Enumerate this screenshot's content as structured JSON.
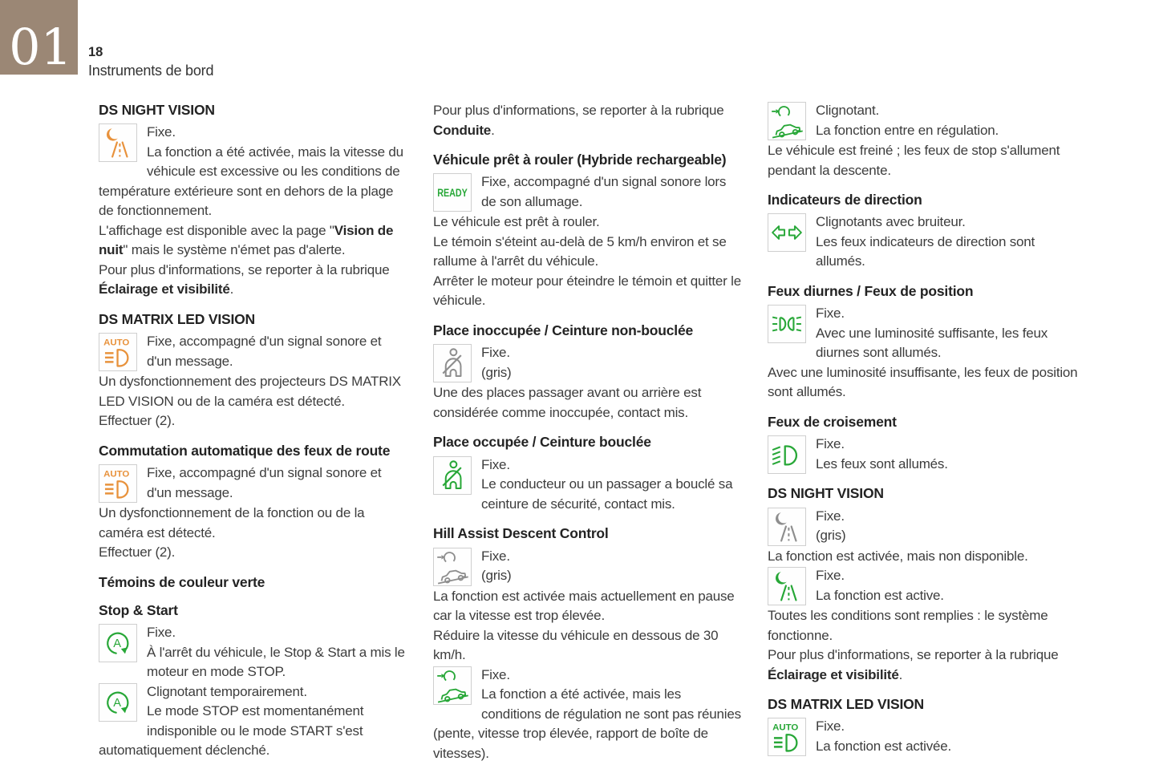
{
  "header": {
    "chapter": "01",
    "page_number": "18",
    "section_title": "Instruments de bord"
  },
  "colors": {
    "orange": "#E8923C",
    "green": "#27A737",
    "gray": "#8E8E8E",
    "chapter_box": "#9B8775",
    "icon_border": "#CFCFCF"
  },
  "columns": [
    {
      "sections": [
        {
          "heading": "DS NIGHT VISION",
          "blocks": [
            {
              "type": "icon",
              "icon": "night-vision",
              "color": "orange",
              "name": "night-vision-icon",
              "lines": [
                [
                  {
                    "t": "Fixe."
                  }
                ],
                [
                  {
                    "t": "La fonction a été activée, mais la vitesse du véhicule est excessive ou les conditions de température extérieure sont en dehors de la plage de fonctionnement."
                  }
                ]
              ]
            },
            {
              "type": "para",
              "runs": [
                {
                  "t": "L'affichage est disponible avec la page \""
                },
                {
                  "t": "Vision de nuit",
                  "b": true
                },
                {
                  "t": "\" mais le système n'émet pas d'alerte."
                }
              ]
            },
            {
              "type": "para",
              "runs": [
                {
                  "t": "Pour plus d'informations, se reporter à la rubrique "
                },
                {
                  "t": "Éclairage et visibilité",
                  "b": true
                },
                {
                  "t": "."
                }
              ]
            }
          ]
        },
        {
          "heading": "DS MATRIX LED VISION",
          "blocks": [
            {
              "type": "icon",
              "icon": "matrix",
              "color": "orange",
              "name": "auto-headlight-icon",
              "lines": [
                [
                  {
                    "t": "Fixe, accompagné d'un signal sonore et d'un message."
                  }
                ]
              ]
            },
            {
              "type": "para",
              "runs": [
                {
                  "t": "Un dysfonctionnement des projecteurs DS MATRIX LED VISION ou de la caméra est détecté."
                }
              ]
            },
            {
              "type": "para",
              "runs": [
                {
                  "t": "Effectuer (2)."
                }
              ]
            }
          ]
        },
        {
          "heading": "Commutation automatique des feux de route",
          "blocks": [
            {
              "type": "icon",
              "icon": "matrix",
              "color": "orange",
              "name": "auto-headlight-icon",
              "lines": [
                [
                  {
                    "t": "Fixe, accompagné d'un signal sonore et d'un message."
                  }
                ]
              ]
            },
            {
              "type": "para",
              "runs": [
                {
                  "t": "Un dysfonctionnement de la fonction ou de la caméra est détecté."
                }
              ]
            },
            {
              "type": "para",
              "runs": [
                {
                  "t": "Effectuer (2)."
                }
              ]
            }
          ]
        },
        {
          "heading": "Témoins de couleur verte",
          "blocks": []
        },
        {
          "heading": "Stop & Start",
          "blocks": [
            {
              "type": "icon",
              "icon": "stopstart",
              "color": "green",
              "name": "stop-start-icon",
              "lines": [
                [
                  {
                    "t": "Fixe."
                  }
                ],
                [
                  {
                    "t": "À l'arrêt du véhicule, le Stop & Start a mis le moteur en mode STOP."
                  }
                ]
              ]
            },
            {
              "type": "icon",
              "icon": "stopstart",
              "color": "green",
              "name": "stop-start-icon",
              "lines": [
                [
                  {
                    "t": "Clignotant temporairement."
                  }
                ],
                [
                  {
                    "t": "Le mode STOP est momentanément indisponible ou le mode START s'est automatiquement déclenché."
                  }
                ]
              ]
            }
          ]
        }
      ]
    },
    {
      "sections": [
        {
          "heading": "",
          "blocks": [
            {
              "type": "para",
              "runs": [
                {
                  "t": "Pour plus d'informations, se reporter à la rubrique "
                },
                {
                  "t": "Conduite",
                  "b": true
                },
                {
                  "t": "."
                }
              ]
            }
          ]
        },
        {
          "heading": "Véhicule prêt à rouler (Hybride rechargeable)",
          "blocks": [
            {
              "type": "icon",
              "icon": "ready",
              "color": "green",
              "name": "ready-icon",
              "lines": [
                [
                  {
                    "t": "Fixe, accompagné d'un signal sonore lors de son allumage."
                  }
                ]
              ]
            },
            {
              "type": "para",
              "runs": [
                {
                  "t": "Le véhicule est prêt à rouler."
                }
              ]
            },
            {
              "type": "para",
              "runs": [
                {
                  "t": "Le témoin s'éteint au-delà de 5 km/h environ et se rallume à l'arrêt du véhicule."
                }
              ]
            },
            {
              "type": "para",
              "runs": [
                {
                  "t": "Arrêter le moteur pour éteindre le témoin et quitter le véhicule."
                }
              ]
            }
          ]
        },
        {
          "heading": "Place inoccupée / Ceinture non-bouclée",
          "blocks": [
            {
              "type": "icon",
              "icon": "seatbelt",
              "color": "gray",
              "name": "seatbelt-icon",
              "lines": [
                [
                  {
                    "t": "Fixe."
                  }
                ],
                [
                  {
                    "t": "(gris)"
                  }
                ]
              ]
            },
            {
              "type": "para",
              "runs": [
                {
                  "t": "Une des places passager avant ou arrière est considérée comme inoccupée, contact mis."
                }
              ]
            }
          ]
        },
        {
          "heading": "Place occupée / Ceinture bouclée",
          "blocks": [
            {
              "type": "icon",
              "icon": "seatbelt",
              "color": "green",
              "name": "seatbelt-icon",
              "lines": [
                [
                  {
                    "t": "Fixe."
                  }
                ],
                [
                  {
                    "t": "Le conducteur ou un passager a bouclé sa ceinture de sécurité, contact mis."
                  }
                ]
              ]
            }
          ]
        },
        {
          "heading": "Hill Assist Descent Control",
          "blocks": [
            {
              "type": "icon",
              "icon": "hill",
              "color": "gray",
              "name": "hill-descent-icon",
              "lines": [
                [
                  {
                    "t": "Fixe."
                  }
                ],
                [
                  {
                    "t": "(gris)"
                  }
                ]
              ]
            },
            {
              "type": "para",
              "runs": [
                {
                  "t": "La fonction est activée mais actuellement en pause car la vitesse est trop élevée."
                }
              ]
            },
            {
              "type": "para",
              "runs": [
                {
                  "t": "Réduire la vitesse du véhicule en dessous de 30 km/h."
                }
              ]
            },
            {
              "type": "icon",
              "icon": "hill",
              "color": "green",
              "name": "hill-descent-icon",
              "lines": [
                [
                  {
                    "t": "Fixe."
                  }
                ],
                [
                  {
                    "t": "La fonction a été activée, mais les conditions de régulation ne sont pas réunies (pente, vitesse trop élevée, rapport de boîte de vitesses)."
                  }
                ]
              ]
            }
          ]
        }
      ]
    },
    {
      "sections": [
        {
          "heading": "",
          "blocks": [
            {
              "type": "icon",
              "icon": "hill",
              "color": "green",
              "name": "hill-descent-icon",
              "lines": [
                [
                  {
                    "t": "Clignotant."
                  }
                ],
                [
                  {
                    "t": "La fonction entre en régulation."
                  }
                ]
              ]
            },
            {
              "type": "para",
              "runs": [
                {
                  "t": "Le véhicule est freiné ; les feux de stop s'allument pendant la descente."
                }
              ]
            }
          ]
        },
        {
          "heading": "Indicateurs de direction",
          "blocks": [
            {
              "type": "icon",
              "icon": "arrows",
              "color": "green",
              "name": "direction-indicators-icon",
              "lines": [
                [
                  {
                    "t": "Clignotants avec bruiteur."
                  }
                ],
                [
                  {
                    "t": "Les feux indicateurs de direction sont allumés."
                  }
                ]
              ]
            }
          ]
        },
        {
          "heading": "Feux diurnes / Feux de position",
          "blocks": [
            {
              "type": "icon",
              "icon": "drl",
              "color": "green",
              "name": "daytime-lights-icon",
              "lines": [
                [
                  {
                    "t": "Fixe."
                  }
                ],
                [
                  {
                    "t": "Avec une luminosité suffisante, les feux diurnes sont allumés."
                  }
                ]
              ]
            },
            {
              "type": "para",
              "runs": [
                {
                  "t": "Avec une luminosité insuffisante, les feux de position sont allumés."
                }
              ]
            }
          ]
        },
        {
          "heading": "Feux de croisement",
          "blocks": [
            {
              "type": "icon",
              "icon": "lowbeam",
              "color": "green",
              "name": "low-beam-icon",
              "lines": [
                [
                  {
                    "t": "Fixe."
                  }
                ],
                [
                  {
                    "t": "Les feux sont allumés."
                  }
                ]
              ]
            }
          ]
        },
        {
          "heading": "DS NIGHT VISION",
          "blocks": [
            {
              "type": "icon",
              "icon": "night-vision",
              "color": "gray",
              "name": "night-vision-icon",
              "lines": [
                [
                  {
                    "t": "Fixe."
                  }
                ],
                [
                  {
                    "t": "(gris)"
                  }
                ]
              ]
            },
            {
              "type": "para",
              "runs": [
                {
                  "t": "La fonction est activée, mais non disponible."
                }
              ]
            },
            {
              "type": "icon",
              "icon": "night-vision",
              "color": "green",
              "name": "night-vision-icon",
              "lines": [
                [
                  {
                    "t": "Fixe."
                  }
                ],
                [
                  {
                    "t": "La fonction est active."
                  }
                ]
              ]
            },
            {
              "type": "para",
              "runs": [
                {
                  "t": "Toutes les conditions sont remplies : le système fonctionne."
                }
              ]
            },
            {
              "type": "para",
              "runs": [
                {
                  "t": "Pour plus d'informations, se reporter à la rubrique "
                },
                {
                  "t": "Éclairage et visibilité",
                  "b": true
                },
                {
                  "t": "."
                }
              ]
            }
          ]
        },
        {
          "heading": "DS MATRIX LED VISION",
          "blocks": [
            {
              "type": "icon",
              "icon": "matrix",
              "color": "green",
              "name": "auto-headlight-icon",
              "lines": [
                [
                  {
                    "t": "Fixe."
                  }
                ],
                [
                  {
                    "t": "La fonction est activée."
                  }
                ]
              ]
            }
          ]
        }
      ]
    }
  ]
}
